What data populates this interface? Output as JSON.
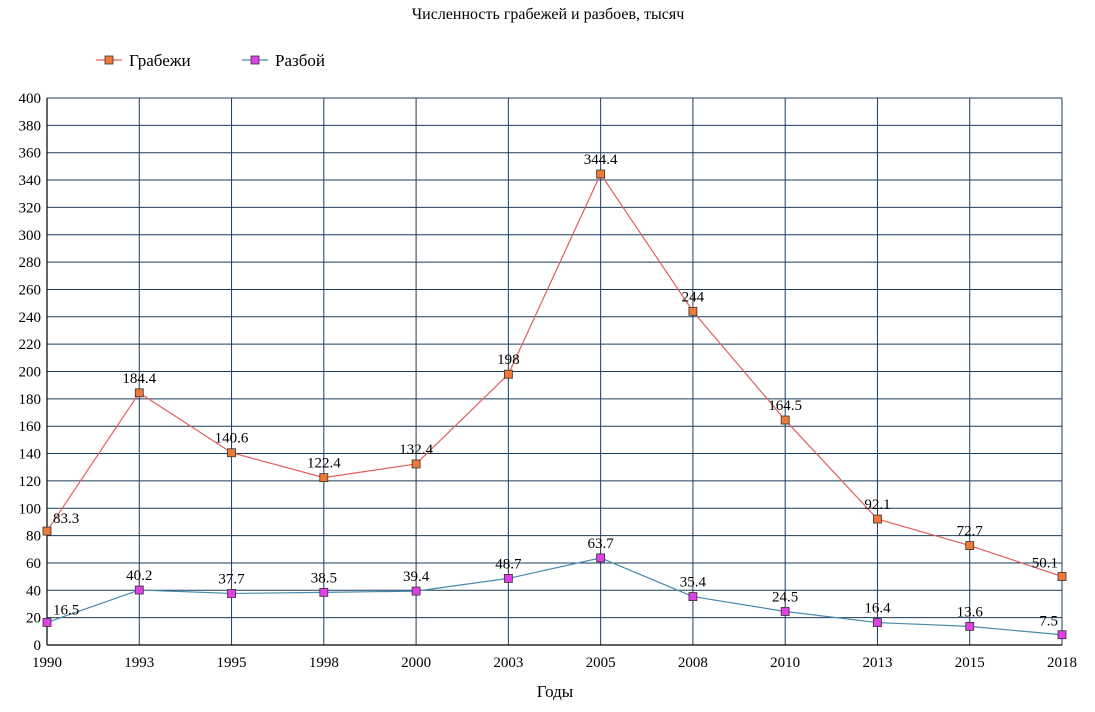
{
  "chart_data": {
    "type": "line",
    "title": "Численность грабежей и разбоев, тысяч",
    "xlabel": "Годы",
    "ylabel": "",
    "categories": [
      "1990",
      "1993",
      "1995",
      "1998",
      "2000",
      "2003",
      "2005",
      "2008",
      "2010",
      "2013",
      "2015",
      "2018"
    ],
    "ylim": [
      0,
      400
    ],
    "ytick_step": 20,
    "grid": true,
    "legend_position": "top-left",
    "series": [
      {
        "name": "Грабежи",
        "values": [
          83.3,
          184.4,
          140.6,
          122.4,
          132.4,
          198,
          344.4,
          244,
          164.5,
          92.1,
          72.7,
          50.1
        ],
        "line_color": "#e06060",
        "marker_color": "#f07838",
        "labels": [
          "83.3",
          "184.4",
          "140.6",
          "122.4",
          "132.4",
          "198",
          "344.4",
          "244",
          "164.5",
          "92.1",
          "72.7",
          "50.1"
        ]
      },
      {
        "name": "Разбой",
        "values": [
          16.5,
          40.2,
          37.7,
          38.5,
          39.4,
          48.7,
          63.7,
          35.4,
          24.5,
          16.4,
          13.6,
          7.5
        ],
        "line_color": "#4a8aaa",
        "marker_color": "#e040e8",
        "labels": [
          "16.5",
          "40.2",
          "37.7",
          "38.5",
          "39.4",
          "48.7",
          "63.7",
          "35.4",
          "24.5",
          "16.4",
          "13.6",
          "7.5"
        ]
      }
    ],
    "grid_color": "#1c3c5c"
  }
}
